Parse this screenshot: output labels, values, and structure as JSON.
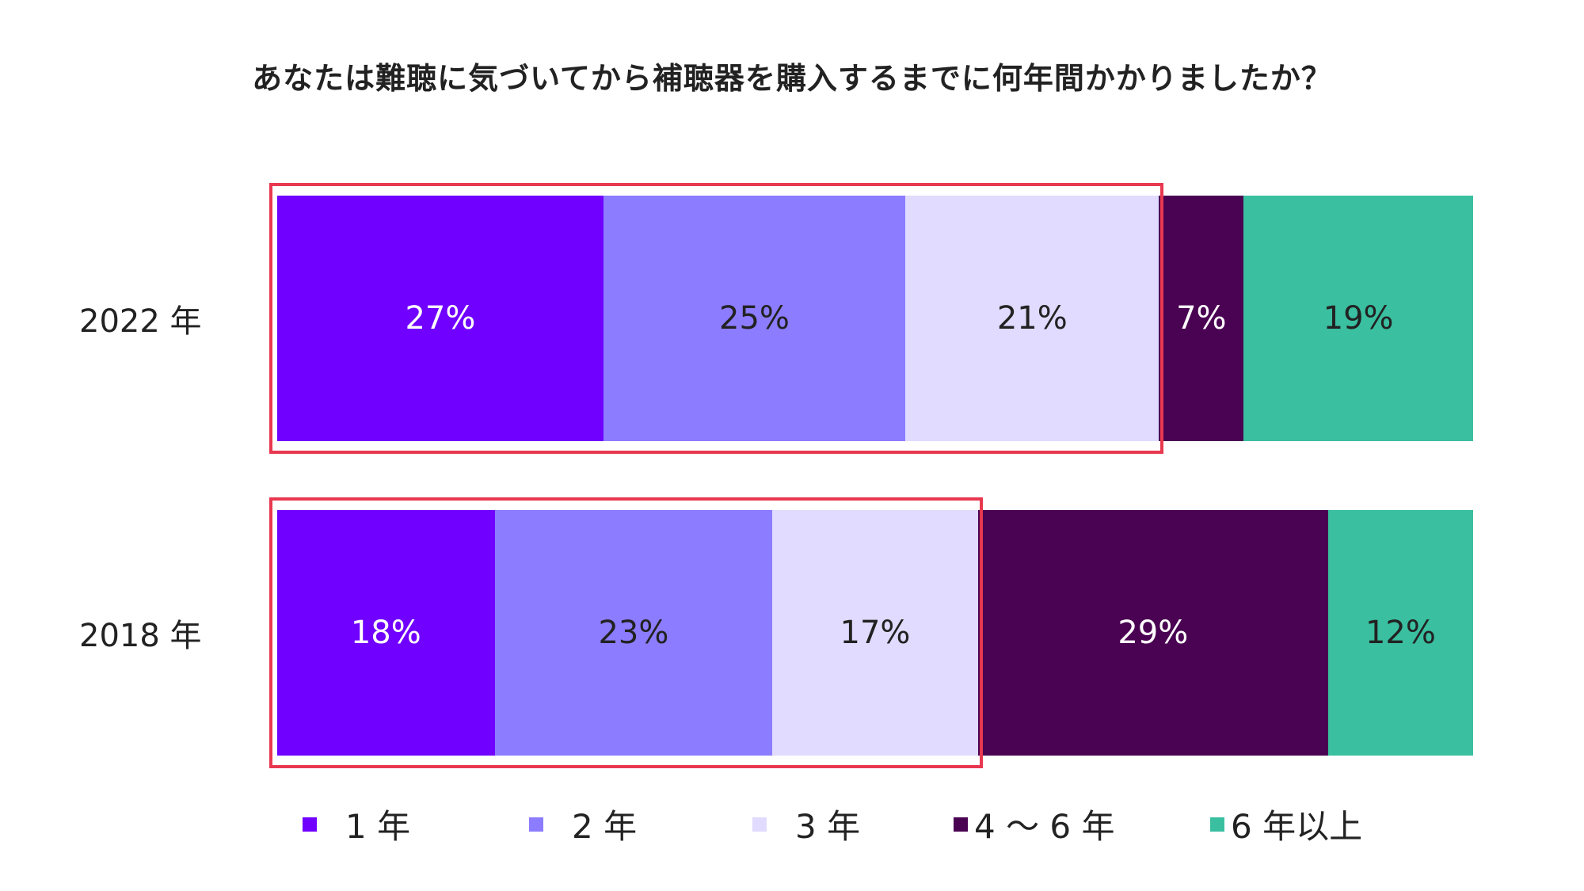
{
  "chart_data": {
    "type": "bar",
    "orientation": "horizontal-stacked-100",
    "title": "あなたは難聴に気づいてから補聴器を購入するまでに何年間かかりましたか？",
    "categories": [
      "2022 年",
      "2018 年"
    ],
    "series": [
      {
        "name": "1 年",
        "color": "#7000FF",
        "text_color": "#ffffff",
        "values": [
          27,
          18
        ],
        "labels": [
          "27%",
          "18%"
        ]
      },
      {
        "name": "2 年",
        "color": "#8C7CFF",
        "text_color": "#222222",
        "values": [
          25,
          23
        ],
        "labels": [
          "25%",
          "23%"
        ]
      },
      {
        "name": "3 年",
        "color": "#E0DBFF",
        "text_color": "#222222",
        "values": [
          21,
          17
        ],
        "labels": [
          "21%",
          "17%"
        ]
      },
      {
        "name": "4 ～ 6 年",
        "color": "#4A0352",
        "text_color": "#ffffff",
        "values": [
          7,
          29
        ],
        "labels": [
          "7%",
          "29%"
        ]
      },
      {
        "name": "6 年以上",
        "color": "#3ABFA0",
        "text_color": "#222222",
        "values": [
          19,
          12
        ],
        "labels": [
          "19%",
          "12%"
        ]
      }
    ],
    "highlight_color": "#E8384F",
    "highlighted_series_per_row": [
      3,
      3
    ],
    "legend_position": "bottom",
    "grid": false
  }
}
